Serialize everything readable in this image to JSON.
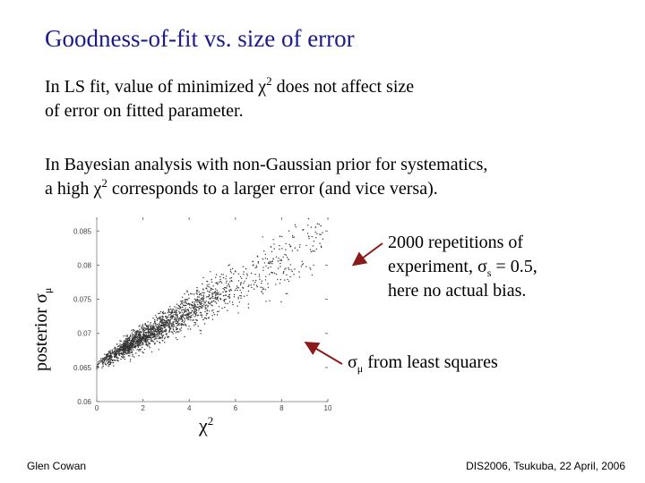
{
  "slide": {
    "title": "Goodness-of-fit vs. size of error",
    "para1": {
      "before": "In LS fit, value of minimized ",
      "chi": "χ",
      "sup": "2",
      "after": " does not affect size",
      "line2": "of error on fitted parameter."
    },
    "para2": {
      "line1": "In Bayesian analysis with non-Gaussian prior for systematics,",
      "before": "a high ",
      "chi": "χ",
      "sup": "2",
      "after": " corresponds to a larger error (and vice versa)."
    },
    "note1": {
      "line1": "2000 repetitions of",
      "line2_before": "experiment, ",
      "sigma": "σ",
      "sub": "s",
      "line2_after": " = 0.5,",
      "line3": "here no actual bias."
    },
    "note2": {
      "sigma": "σ",
      "sub": "μ",
      "after": " from least squares"
    },
    "footer_left": "Glen Cowan",
    "footer_right": "DIS2006, Tsukuba, 22 April, 2006"
  },
  "chart_data": {
    "type": "scatter",
    "xlabel": "χ2",
    "ylabel": "posterior σμ",
    "x_ticks": [
      "0",
      "2",
      "4",
      "6",
      "8",
      "10"
    ],
    "y_ticks": [
      "0.06",
      "0.065",
      "0.07",
      "0.075",
      "0.08",
      "0.085"
    ],
    "xlim": [
      0,
      10
    ],
    "ylim": [
      0.06,
      0.087
    ],
    "n_points": 2000,
    "trend": [
      [
        0.0,
        0.0653
      ],
      [
        2.0,
        0.0695
      ],
      [
        4.0,
        0.0731
      ],
      [
        6.0,
        0.0769
      ],
      [
        8.0,
        0.0808
      ],
      [
        10.0,
        0.0848
      ]
    ],
    "ls_error_level": 0.0653
  },
  "colors": {
    "title": "#1a1a8c",
    "arrow": "#8b1a1a",
    "points": "#333333"
  }
}
